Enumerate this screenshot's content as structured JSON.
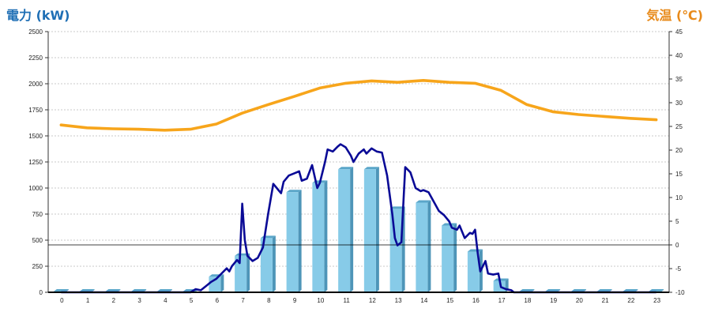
{
  "colors": {
    "power_title": "#1f6fb5",
    "temp_title": "#e88a1a",
    "bar_face": "#87cbe8",
    "bar_side": "#4e95b8",
    "bar_top": "#5aa6c9",
    "power_line": "#0a0a96",
    "temp_line": "#f7a51b",
    "grid": "#b8b8b8"
  },
  "chart_data": {
    "type": "bar",
    "left_axis_title": "電力 (kW)",
    "right_axis_title": "気温 (℃)",
    "x_ticks": [
      "0",
      "1",
      "2",
      "3",
      "4",
      "5",
      "6",
      "7",
      "8",
      "9",
      "10",
      "11",
      "12",
      "13",
      "14",
      "15",
      "16",
      "17",
      "18",
      "19",
      "20",
      "21",
      "22",
      "23"
    ],
    "left_ticks": [
      "0",
      "250",
      "500",
      "750",
      "1000",
      "1250",
      "1500",
      "1750",
      "2000",
      "2250",
      "2500"
    ],
    "right_ticks": [
      "-10",
      "-5",
      "0",
      "5",
      "10",
      "15",
      "20",
      "25",
      "30",
      "35",
      "40",
      "45"
    ],
    "ylim_left": [
      0,
      2500
    ],
    "ylim_right": [
      -10,
      45
    ],
    "grid": "horizontal dashed",
    "zero_line_right": 0,
    "series": [
      {
        "kind": "bar",
        "axis": "left",
        "values": [
          0,
          0,
          0,
          0,
          0,
          0,
          150,
          350,
          520,
          960,
          1050,
          1180,
          1180,
          800,
          860,
          640,
          390,
          110,
          0,
          0,
          0,
          0,
          0,
          0
        ]
      },
      {
        "kind": "line",
        "axis": "left",
        "points": [
          [
            0,
            0
          ],
          [
            5,
            0
          ],
          [
            5.2,
            30
          ],
          [
            5.4,
            20
          ],
          [
            5.6,
            60
          ],
          [
            5.8,
            100
          ],
          [
            6,
            130
          ],
          [
            6.2,
            180
          ],
          [
            6.4,
            230
          ],
          [
            6.5,
            200
          ],
          [
            6.6,
            250
          ],
          [
            6.8,
            310
          ],
          [
            6.9,
            280
          ],
          [
            7,
            850
          ],
          [
            7.1,
            500
          ],
          [
            7.2,
            350
          ],
          [
            7.4,
            300
          ],
          [
            7.6,
            330
          ],
          [
            7.8,
            430
          ],
          [
            8,
            750
          ],
          [
            8.2,
            1040
          ],
          [
            8.4,
            980
          ],
          [
            8.5,
            950
          ],
          [
            8.6,
            1060
          ],
          [
            8.8,
            1120
          ],
          [
            9,
            1140
          ],
          [
            9.2,
            1160
          ],
          [
            9.3,
            1070
          ],
          [
            9.5,
            1090
          ],
          [
            9.7,
            1220
          ],
          [
            9.9,
            1000
          ],
          [
            10,
            1050
          ],
          [
            10.2,
            1250
          ],
          [
            10.3,
            1370
          ],
          [
            10.5,
            1350
          ],
          [
            10.7,
            1400
          ],
          [
            10.8,
            1420
          ],
          [
            11,
            1390
          ],
          [
            11.2,
            1310
          ],
          [
            11.3,
            1250
          ],
          [
            11.5,
            1330
          ],
          [
            11.7,
            1370
          ],
          [
            11.8,
            1330
          ],
          [
            12,
            1380
          ],
          [
            12.2,
            1350
          ],
          [
            12.4,
            1340
          ],
          [
            12.6,
            1120
          ],
          [
            12.8,
            750
          ],
          [
            12.9,
            520
          ],
          [
            13,
            450
          ],
          [
            13.15,
            480
          ],
          [
            13.3,
            1200
          ],
          [
            13.5,
            1150
          ],
          [
            13.7,
            1000
          ],
          [
            13.9,
            970
          ],
          [
            14,
            980
          ],
          [
            14.2,
            960
          ],
          [
            14.4,
            870
          ],
          [
            14.6,
            780
          ],
          [
            14.8,
            740
          ],
          [
            15,
            680
          ],
          [
            15.1,
            620
          ],
          [
            15.3,
            600
          ],
          [
            15.4,
            640
          ],
          [
            15.6,
            520
          ],
          [
            15.8,
            570
          ],
          [
            15.9,
            560
          ],
          [
            16,
            600
          ],
          [
            16.1,
            380
          ],
          [
            16.2,
            200
          ],
          [
            16.4,
            300
          ],
          [
            16.5,
            180
          ],
          [
            16.7,
            170
          ],
          [
            16.9,
            180
          ],
          [
            17,
            50
          ],
          [
            17.2,
            30
          ],
          [
            17.4,
            20
          ],
          [
            17.5,
            0
          ],
          [
            23,
            0
          ]
        ]
      },
      {
        "kind": "line",
        "axis": "right",
        "points": [
          [
            0,
            25.3
          ],
          [
            1,
            24.7
          ],
          [
            2,
            24.5
          ],
          [
            3,
            24.4
          ],
          [
            4,
            24.2
          ],
          [
            5,
            24.4
          ],
          [
            6,
            25.5
          ],
          [
            7,
            27.8
          ],
          [
            8,
            29.6
          ],
          [
            9,
            31.3
          ],
          [
            10,
            33.1
          ],
          [
            11,
            34.1
          ],
          [
            12,
            34.6
          ],
          [
            13,
            34.3
          ],
          [
            14,
            34.7
          ],
          [
            15,
            34.3
          ],
          [
            16,
            34.1
          ],
          [
            17,
            32.6
          ],
          [
            18,
            29.6
          ],
          [
            19,
            28.1
          ],
          [
            20,
            27.5
          ],
          [
            21,
            27.1
          ],
          [
            22,
            26.7
          ],
          [
            23,
            26.4
          ]
        ]
      }
    ]
  }
}
